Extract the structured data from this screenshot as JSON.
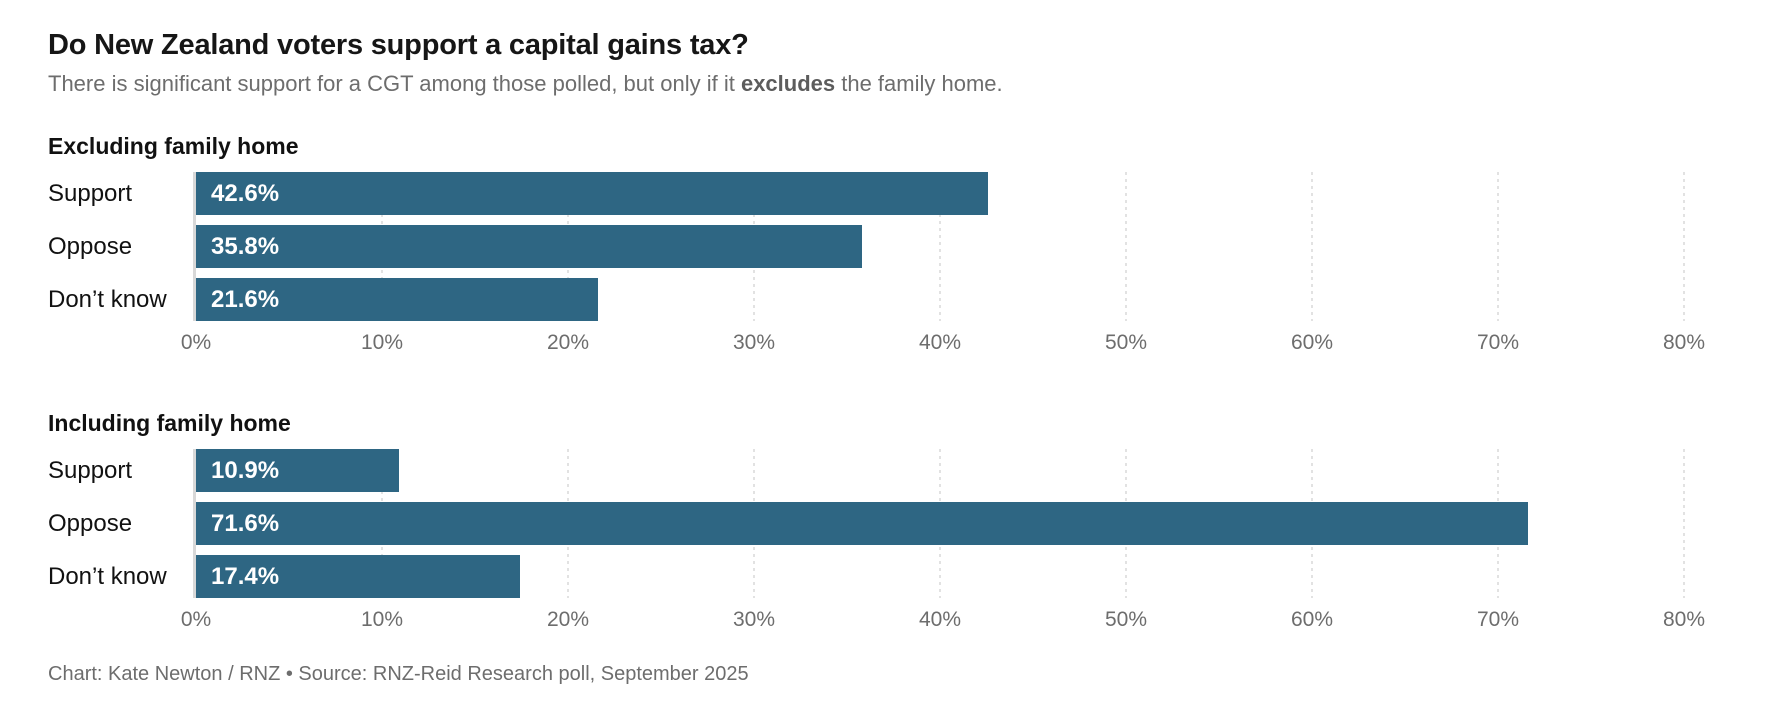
{
  "header": {
    "title": "Do New Zealand voters support a capital gains tax?",
    "subtitle_before": "There is significant support for a CGT among those polled, but only if it ",
    "subtitle_bold": "excludes",
    "subtitle_after": " the family home."
  },
  "footer": {
    "credit": "Chart: Kate Newton / RNZ • Source: RNZ-Reid Research poll, September 2025"
  },
  "colors": {
    "bar": "#2e6683",
    "bar_label": "#ffffff",
    "title_text": "#161616",
    "muted_text": "#6d6d6d",
    "gridline": "#e2e2e2",
    "axis_line": "#d8d8d8"
  },
  "chart_data": [
    {
      "type": "bar",
      "orientation": "horizontal",
      "title": "Excluding family home",
      "categories": [
        "Support",
        "Oppose",
        "Don’t know"
      ],
      "values": [
        42.6,
        35.8,
        21.6
      ],
      "value_labels": [
        "42.6%",
        "35.8%",
        "21.6%"
      ],
      "xlim": [
        0,
        80
      ],
      "x_ticks": [
        "0%",
        "10%",
        "20%",
        "30%",
        "40%",
        "50%",
        "60%",
        "70%",
        "80%"
      ],
      "grid": "dotted-vertical",
      "legend": "none"
    },
    {
      "type": "bar",
      "orientation": "horizontal",
      "title": "Including family home",
      "categories": [
        "Support",
        "Oppose",
        "Don’t know"
      ],
      "values": [
        10.9,
        71.6,
        17.4
      ],
      "value_labels": [
        "10.9%",
        "71.6%",
        "17.4%"
      ],
      "xlim": [
        0,
        80
      ],
      "x_ticks": [
        "0%",
        "10%",
        "20%",
        "30%",
        "40%",
        "50%",
        "60%",
        "70%",
        "80%"
      ],
      "grid": "dotted-vertical",
      "legend": "none"
    }
  ]
}
